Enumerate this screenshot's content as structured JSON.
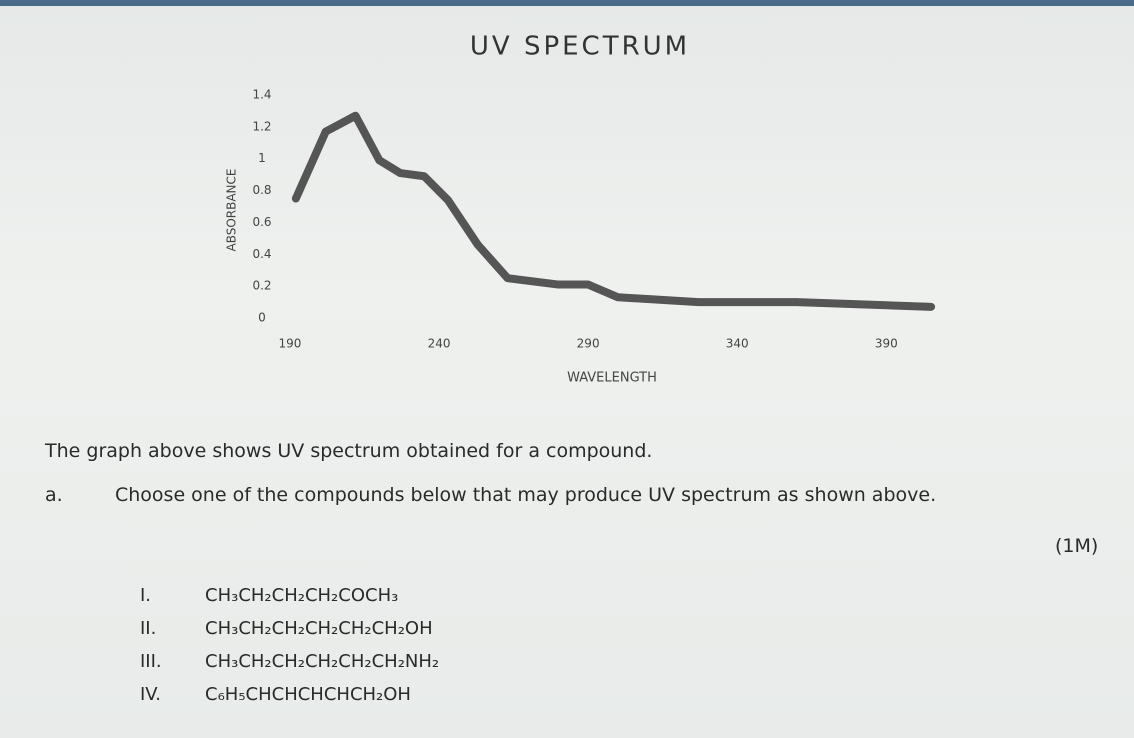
{
  "chart_data": {
    "type": "line",
    "title": "UV SPECTRUM",
    "xlabel": "WAVELENGTH",
    "ylabel": "ABSORBANCE",
    "x": [
      192,
      202,
      212,
      220,
      227,
      235,
      243,
      253,
      263,
      280,
      290,
      300,
      327,
      360,
      405
    ],
    "series": [
      {
        "name": "Absorbance",
        "color": "#555555",
        "values": [
          0.75,
          1.17,
          1.27,
          0.99,
          0.91,
          0.89,
          0.74,
          0.46,
          0.25,
          0.21,
          0.21,
          0.13,
          0.1,
          0.1,
          0.07
        ]
      }
    ],
    "xlim": [
      185,
      410
    ],
    "xticks": [
      190,
      240,
      290,
      340,
      390
    ],
    "ylim": [
      0,
      1.4
    ],
    "yticks": [
      0,
      0.2,
      0.4,
      0.6,
      0.8,
      1,
      1.2,
      1.4
    ],
    "grid": false
  },
  "question": {
    "intro": "The graph above shows UV spectrum obtained for a compound.",
    "part": "a.",
    "prompt": "Choose one of the compounds below that may produce UV spectrum as shown above.",
    "marks": "(1M)",
    "options": [
      {
        "numeral": "I.",
        "formula": "CH₃CH₂CH₂CH₂COCH₃"
      },
      {
        "numeral": "II.",
        "formula": "CH₃CH₂CH₂CH₂CH₂CH₂OH"
      },
      {
        "numeral": "III.",
        "formula": "CH₃CH₂CH₂CH₂CH₂CH₂NH₂"
      },
      {
        "numeral": "IV.",
        "formula": "C₆H₅CHCHCHCHCH₂OH"
      }
    ]
  }
}
